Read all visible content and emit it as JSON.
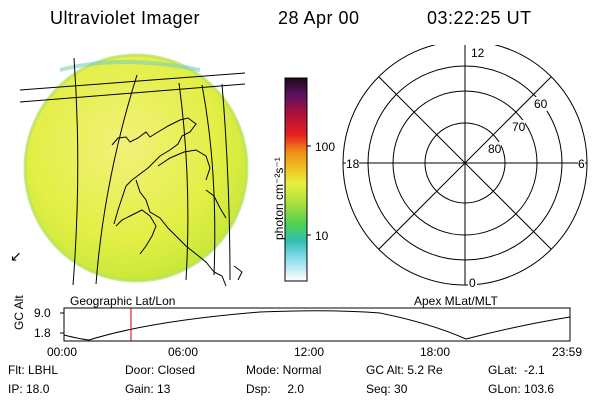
{
  "header": {
    "title": "Ultraviolet Imager",
    "date": "28 Apr 00",
    "time": "03:22:25 UT"
  },
  "colorbar": {
    "label": "photon cm⁻²s⁻¹",
    "ticks": [
      "100",
      "10"
    ]
  },
  "left_panel": {
    "caption": "Geographic Lat/Lon"
  },
  "right_panel": {
    "caption": "Apex MLat/MLT",
    "mlt_labels": {
      "top": "12",
      "right": "6",
      "bottom": "0",
      "left": "18"
    },
    "lat_labels": [
      "60",
      "70",
      "80"
    ]
  },
  "altitude_plot": {
    "ylabel": "GC Alt",
    "ytick_high": "9.0",
    "ytick_low": "1.8",
    "xticks": [
      "00:00",
      "06:00",
      "12:00",
      "18:00",
      "23:59"
    ]
  },
  "info": {
    "filter": "Flt: LBHL",
    "door": "Door: Closed",
    "mode": "Mode: Normal",
    "gc_alt": "GC Alt: 5.2 Re",
    "glat": "GLat:  -2.1",
    "ip": "IP: 18.0",
    "gain": "Gain: 13",
    "dsp": "Dsp:     2.0",
    "seq": "Seq: 30",
    "glon": "GLon: 103.6"
  },
  "colors": {
    "disk_fill": "#e6f04a",
    "grid_line": "#000000",
    "time_marker": "#cc0000"
  }
}
